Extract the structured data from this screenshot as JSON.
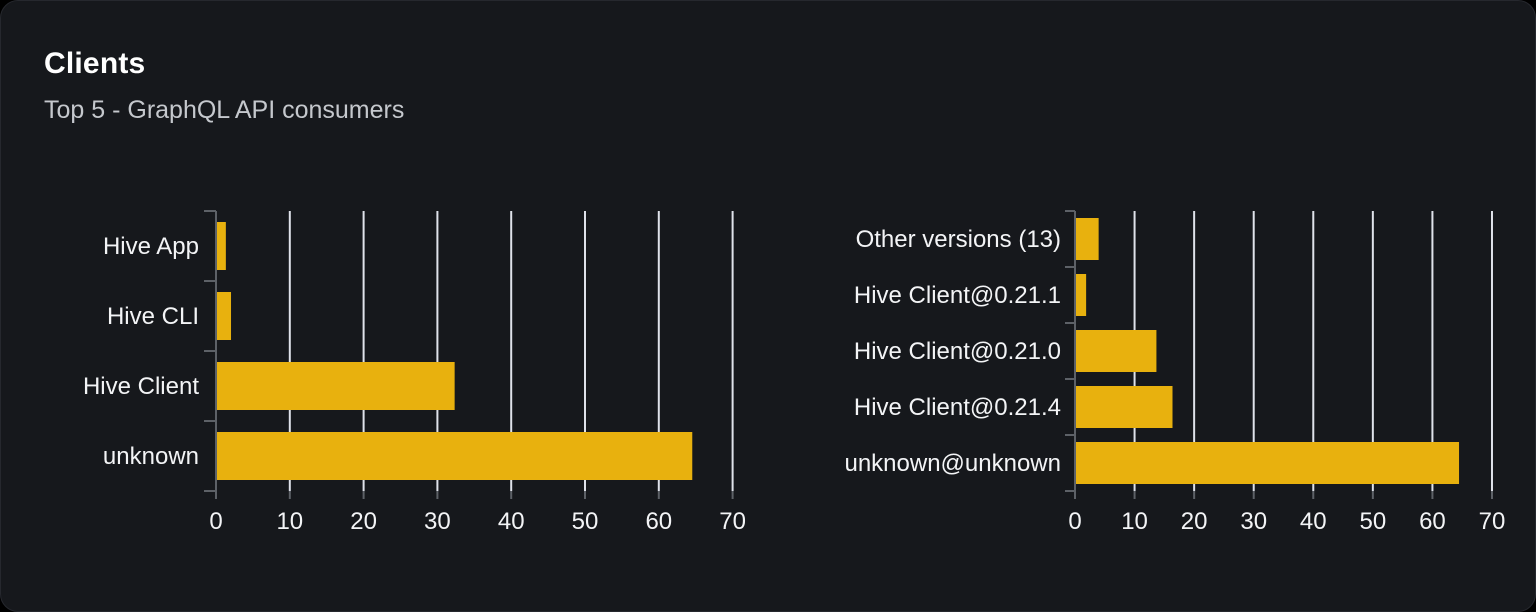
{
  "card": {
    "title": "Clients",
    "subtitle": "Top 5 - GraphQL API consumers"
  },
  "colors": {
    "page_bg": "#000000",
    "card_bg": "#16181c",
    "card_border": "#26282e",
    "bar": "#e8b10e",
    "grid_line": "#dfe2ea",
    "axis_line": "#5d6167",
    "text": "#f3f4f6",
    "subtitle_text": "#c5c8cd"
  },
  "chart_data": [
    {
      "type": "bar",
      "orientation": "horizontal",
      "name": "clients-by-name",
      "title": "",
      "categories": [
        "Hive App",
        "Hive CLI",
        "Hive Client",
        "unknown"
      ],
      "values": [
        1.2,
        1.9,
        32.2,
        64.4
      ],
      "xlabel": "",
      "ylabel": "",
      "xlim": [
        0,
        70
      ],
      "x_ticks": [
        0,
        10,
        20,
        30,
        40,
        50,
        60,
        70
      ],
      "grid": true,
      "legend": "none"
    },
    {
      "type": "bar",
      "orientation": "horizontal",
      "name": "clients-by-version",
      "title": "",
      "categories": [
        "Other versions (13)",
        "Hive Client@0.21.1",
        "Hive Client@0.21.0",
        "Hive Client@0.21.4",
        "unknown@unknown"
      ],
      "values": [
        3.8,
        1.7,
        13.5,
        16.2,
        64.3
      ],
      "xlabel": "",
      "ylabel": "",
      "xlim": [
        0,
        70
      ],
      "x_ticks": [
        0,
        10,
        20,
        30,
        40,
        50,
        60,
        70
      ],
      "grid": true,
      "legend": "none"
    }
  ]
}
